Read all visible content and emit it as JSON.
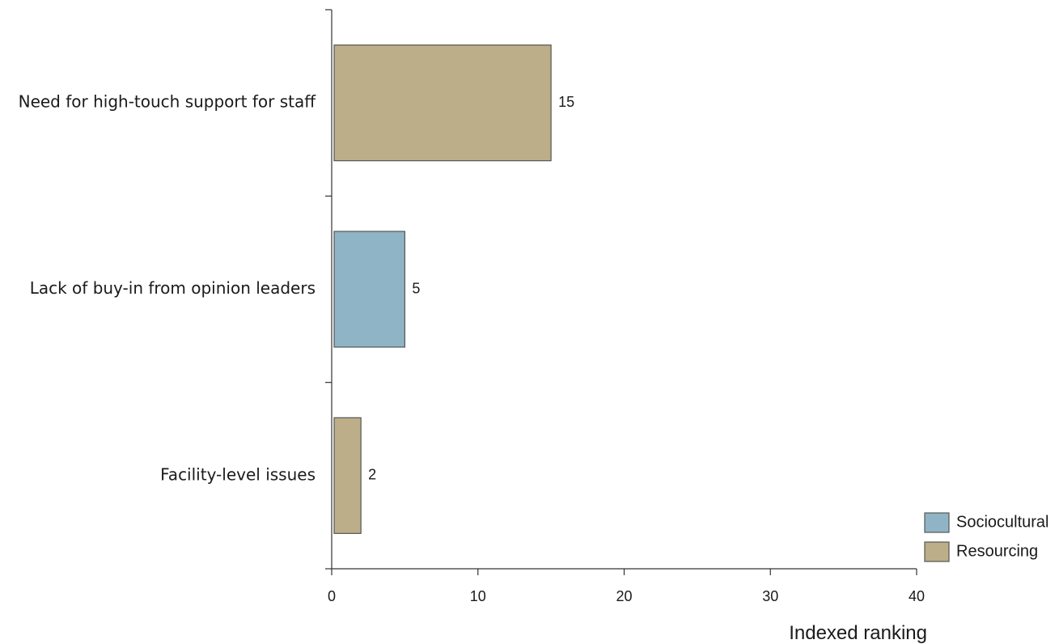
{
  "chart_data": {
    "type": "bar",
    "orientation": "horizontal",
    "categories": [
      "Need for high-touch support for staff",
      "Lack of buy-in from opinion leaders",
      "Facility-level issues"
    ],
    "values": [
      15,
      5,
      2
    ],
    "value_labels": [
      "15",
      "5",
      "2"
    ],
    "groups": [
      "Resourcing",
      "Sociocultural",
      "Resourcing"
    ],
    "xlabel": "Indexed ranking",
    "ylabel": "",
    "title": "",
    "xlim": [
      0,
      40
    ],
    "x_ticks": [
      0,
      10,
      20,
      30,
      40
    ],
    "x_tick_labels": [
      "0",
      "10",
      "20",
      "30",
      "40"
    ],
    "grid": false,
    "legend_position": "bottom-right",
    "legend": [
      {
        "name": "Sociocultural",
        "color": "#8fb4c6"
      },
      {
        "name": "Resourcing",
        "color": "#bcae89"
      }
    ],
    "colors": {
      "Sociocultural": "#8fb4c6",
      "Resourcing": "#bcae89",
      "bar_stroke": "#555555",
      "axis": "#333333"
    }
  }
}
